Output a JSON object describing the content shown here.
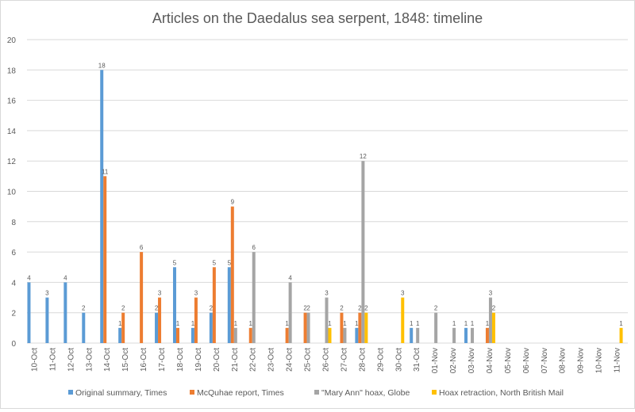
{
  "chart_data": {
    "type": "bar",
    "title": "Articles on the Daedalus sea serpent, 1848: timeline",
    "xlabel": "",
    "ylabel": "",
    "ylim": [
      0,
      20
    ],
    "yticks": [
      0,
      2,
      4,
      6,
      8,
      10,
      12,
      14,
      16,
      18,
      20
    ],
    "grid": true,
    "legend_position": "bottom",
    "data_labels": true,
    "categories": [
      "10-Oct",
      "11-Oct",
      "12-Oct",
      "13-Oct",
      "14-Oct",
      "15-Oct",
      "16-Oct",
      "17-Oct",
      "18-Oct",
      "19-Oct",
      "20-Oct",
      "21-Oct",
      "22-Oct",
      "23-Oct",
      "24-Oct",
      "25-Oct",
      "26-Oct",
      "27-Oct",
      "28-Oct",
      "29-Oct",
      "30-Oct",
      "31-Oct",
      "01-Nov",
      "02-Nov",
      "03-Nov",
      "04-Nov",
      "05-Nov",
      "06-Nov",
      "07-Nov",
      "08-Nov",
      "09-Nov",
      "10-Nov",
      "11-Nov"
    ],
    "series": [
      {
        "name": "Original summary, Times",
        "color": "#5b9bd5",
        "values": [
          4,
          3,
          4,
          2,
          18,
          1,
          null,
          2,
          5,
          1,
          2,
          5,
          null,
          null,
          null,
          null,
          null,
          null,
          1,
          null,
          null,
          1,
          null,
          null,
          1,
          null,
          null,
          null,
          null,
          null,
          null,
          null,
          null
        ]
      },
      {
        "name": "McQuhae report, Times",
        "color": "#ed7d31",
        "values": [
          null,
          null,
          null,
          null,
          11,
          2,
          6,
          3,
          1,
          3,
          5,
          9,
          1,
          null,
          1,
          2,
          null,
          2,
          2,
          null,
          null,
          null,
          null,
          null,
          null,
          1,
          null,
          null,
          null,
          null,
          null,
          null,
          null
        ]
      },
      {
        "name": "\"Mary Ann\" hoax, Globe",
        "color": "#a5a5a5",
        "values": [
          null,
          null,
          null,
          null,
          null,
          null,
          null,
          null,
          null,
          null,
          null,
          1,
          6,
          null,
          4,
          2,
          3,
          1,
          12,
          null,
          null,
          1,
          2,
          1,
          1,
          3,
          null,
          null,
          null,
          null,
          null,
          null,
          null
        ]
      },
      {
        "name": "Hoax retraction, North British Mail",
        "color": "#ffc000",
        "values": [
          null,
          null,
          null,
          null,
          null,
          null,
          null,
          null,
          null,
          null,
          null,
          null,
          null,
          null,
          null,
          null,
          1,
          null,
          2,
          null,
          3,
          null,
          null,
          null,
          null,
          2,
          null,
          null,
          null,
          null,
          null,
          null,
          1
        ]
      }
    ]
  }
}
